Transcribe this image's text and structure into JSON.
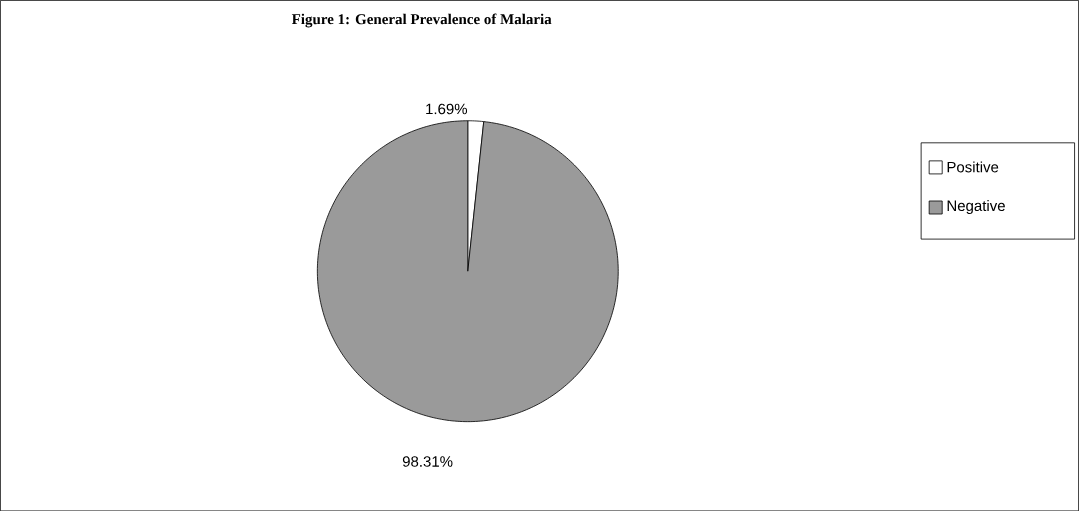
{
  "chart_data": {
    "type": "pie",
    "title": "Figure 1: General Prevalence of Malaria",
    "categories": [
      "Positive",
      "Negative"
    ],
    "values": [
      1.69,
      98.31
    ],
    "value_labels": [
      "1.69%",
      "98.31%"
    ],
    "colors": [
      "#ffffff",
      "#9a9a9a"
    ],
    "legend": "right"
  }
}
